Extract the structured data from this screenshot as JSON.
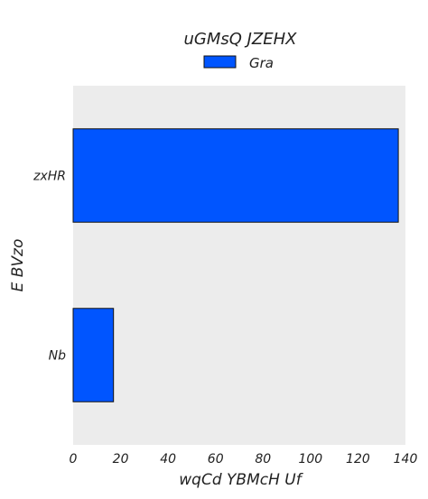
{
  "chart_data": {
    "type": "bar",
    "orientation": "horizontal",
    "title": "uGMsQ JZEHX",
    "xlabel": "wqCd YBMcH Uf",
    "ylabel": "E BVzo",
    "categories": [
      "zxHR",
      "Nb"
    ],
    "series": [
      {
        "name": "Gra",
        "values": [
          137,
          17
        ]
      }
    ],
    "xlim": [
      0,
      140
    ],
    "xticks": [
      0,
      20,
      40,
      60,
      80,
      100,
      120,
      140
    ],
    "legend": "top-center",
    "grid": false,
    "colors": {
      "bar": "#0055ff",
      "plot_bg": "#ececec",
      "bar_edge": "#111111"
    }
  }
}
